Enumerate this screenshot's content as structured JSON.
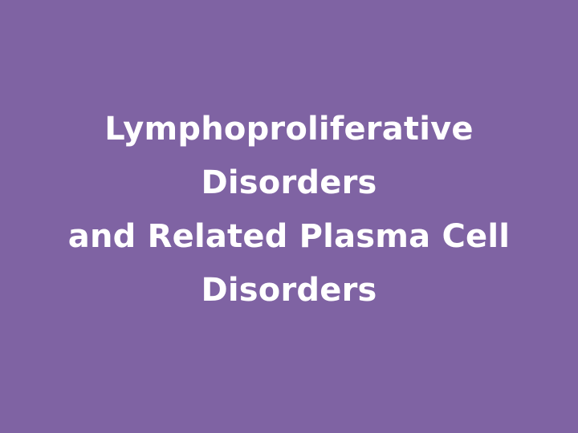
{
  "slide": {
    "background_color": "#7f63a3",
    "text_color": "#ffffff",
    "title_lines": [
      "Lymphoproliferative",
      "Disorders",
      "and Related Plasma Cell",
      "Disorders"
    ]
  }
}
